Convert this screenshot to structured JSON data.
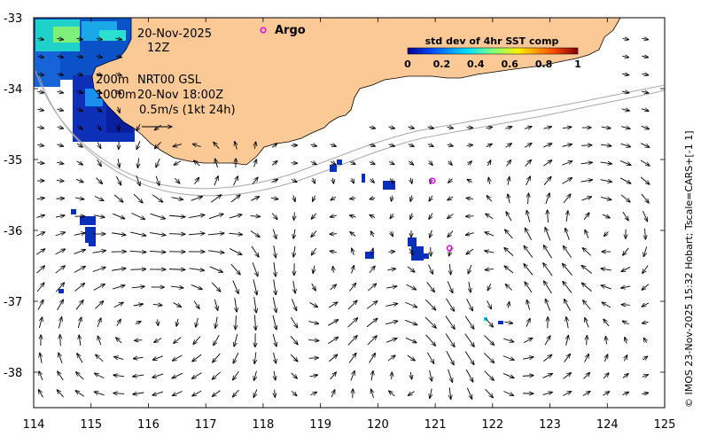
{
  "map": {
    "x_ticks": [
      "114",
      "115",
      "116",
      "117",
      "118",
      "119",
      "120",
      "121",
      "122",
      "123",
      "124",
      "125"
    ],
    "y_ticks": [
      "-33",
      "-34",
      "-35",
      "-36",
      "-37",
      "-38"
    ],
    "x_range": [
      114,
      125
    ],
    "y_range": [
      -38.5,
      -33
    ],
    "colors": {
      "land": "#fbc996",
      "isobath": "#a8a8a8",
      "argo": "#e600e6",
      "arrow": "#000000"
    }
  },
  "annotations": {
    "date": "20-Nov-2025",
    "time": "12Z",
    "isobath_200": "200m",
    "isobath_1000": "1000m",
    "product": "NRT00 GSL",
    "analysis_time": "20-Nov 18:00Z",
    "scale": "0.5m/s (1kt 24h)"
  },
  "argo": {
    "legend_label": "Argo",
    "floats": [
      {
        "lon": 120.95,
        "lat": -35.3
      },
      {
        "lon": 121.25,
        "lat": -36.25
      }
    ]
  },
  "colorbar": {
    "title": "std dev of 4hr SST comp",
    "ticks": [
      "0",
      "0.2",
      "0.4",
      "0.6",
      "0.8",
      "1"
    ],
    "colormap": [
      "#00008f",
      "#0050ff",
      "#00dfff",
      "#7fff7f",
      "#ffef00",
      "#ff5000",
      "#800000"
    ]
  },
  "credit": "© IMOS 23-Nov-2025 15:32 Hobart; Tscale=CARS+[-1 1]"
}
